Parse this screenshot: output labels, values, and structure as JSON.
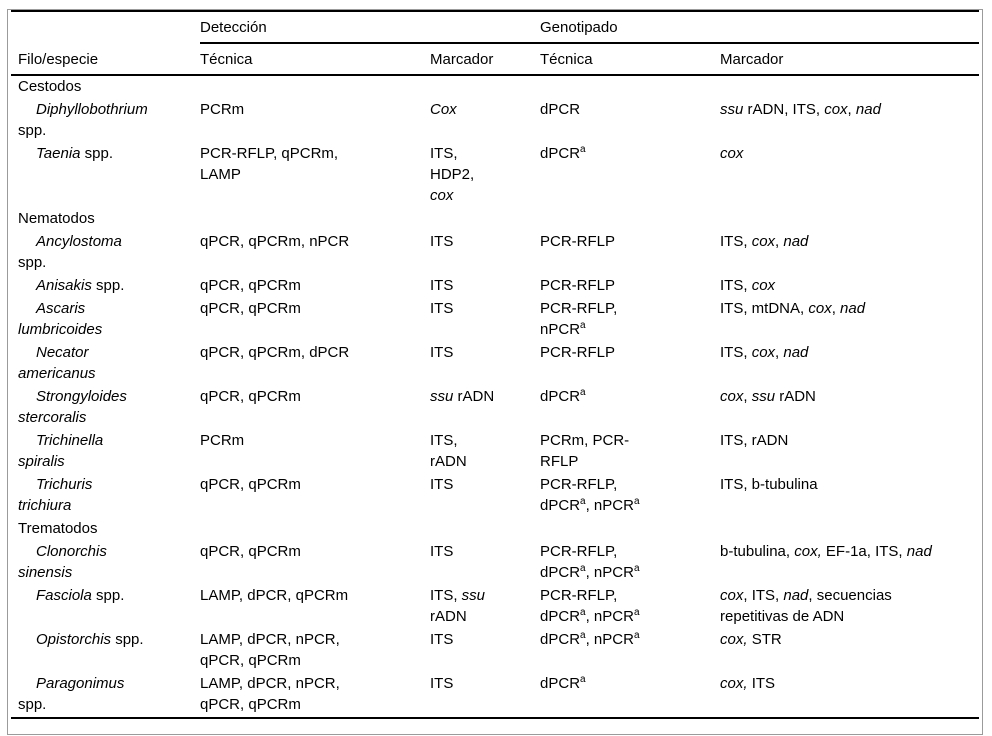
{
  "colors": {
    "background": "#ffffff",
    "text": "#000000",
    "rule": "#000000",
    "frame_border": "#9b9b9b"
  },
  "table": {
    "header": {
      "col1": "Filo/especie",
      "group1": "Detección",
      "group2": "Genotipado",
      "sub": [
        "Técnica",
        "Marcador",
        "Técnica",
        "Marcador"
      ]
    },
    "rows": [
      {
        "type": "group",
        "label": "Cestodos"
      },
      {
        "type": "species",
        "cells": {
          "species": [
            {
              "t": "Diphyllobothrium",
              "i": 1
            },
            {
              "br": 1
            },
            {
              "t": "spp."
            }
          ],
          "det_tec": [
            {
              "t": "PCRm"
            }
          ],
          "det_mar": [
            {
              "t": "Cox",
              "i": 1
            }
          ],
          "gen_tec": [
            {
              "t": "dPCR"
            }
          ],
          "gen_mar": [
            {
              "t": "ssu",
              "i": 1
            },
            {
              "t": " rADN, ITS, "
            },
            {
              "t": "cox",
              "i": 1
            },
            {
              "t": ", "
            },
            {
              "t": "nad",
              "i": 1
            }
          ]
        }
      },
      {
        "type": "species",
        "cells": {
          "species": [
            {
              "t": "Taenia",
              "i": 1
            },
            {
              "t": " spp."
            }
          ],
          "det_tec": [
            {
              "t": "PCR-RFLP, qPCRm,"
            },
            {
              "br": 1
            },
            {
              "t": "LAMP"
            }
          ],
          "det_mar": [
            {
              "t": "ITS,"
            },
            {
              "br": 1
            },
            {
              "t": "HDP2,"
            },
            {
              "br": 1
            },
            {
              "t": "cox",
              "i": 1
            }
          ],
          "gen_tec": [
            {
              "t": "dPCR"
            },
            {
              "t": "a",
              "sup": 1
            }
          ],
          "gen_mar": [
            {
              "t": "cox",
              "i": 1
            }
          ]
        }
      },
      {
        "type": "group",
        "label": "Nematodos"
      },
      {
        "type": "species",
        "cells": {
          "species": [
            {
              "t": "Ancylostoma",
              "i": 1
            },
            {
              "br": 1
            },
            {
              "t": "spp."
            }
          ],
          "det_tec": [
            {
              "t": "qPCR, qPCRm, nPCR"
            }
          ],
          "det_mar": [
            {
              "t": "ITS"
            }
          ],
          "gen_tec": [
            {
              "t": "PCR-RFLP"
            }
          ],
          "gen_mar": [
            {
              "t": "ITS, "
            },
            {
              "t": "cox",
              "i": 1
            },
            {
              "t": ", "
            },
            {
              "t": "nad",
              "i": 1
            }
          ]
        }
      },
      {
        "type": "species",
        "cells": {
          "species": [
            {
              "t": "Anisakis",
              "i": 1
            },
            {
              "t": " spp."
            }
          ],
          "det_tec": [
            {
              "t": "qPCR, qPCRm"
            }
          ],
          "det_mar": [
            {
              "t": "ITS"
            }
          ],
          "gen_tec": [
            {
              "t": "PCR-RFLP"
            }
          ],
          "gen_mar": [
            {
              "t": "ITS, "
            },
            {
              "t": "cox",
              "i": 1
            }
          ]
        }
      },
      {
        "type": "species",
        "cells": {
          "species": [
            {
              "t": "Ascaris",
              "i": 1
            },
            {
              "br": 1
            },
            {
              "t": "lumbricoides",
              "i": 1
            }
          ],
          "det_tec": [
            {
              "t": "qPCR, qPCRm"
            }
          ],
          "det_mar": [
            {
              "t": "ITS"
            }
          ],
          "gen_tec": [
            {
              "t": "PCR-RFLP,"
            },
            {
              "br": 1
            },
            {
              "t": "nPCR"
            },
            {
              "t": "a",
              "sup": 1
            }
          ],
          "gen_mar": [
            {
              "t": "ITS, mtDNA, "
            },
            {
              "t": "cox",
              "i": 1
            },
            {
              "t": ", "
            },
            {
              "t": "nad",
              "i": 1
            }
          ]
        }
      },
      {
        "type": "species",
        "cells": {
          "species": [
            {
              "t": "Necator",
              "i": 1
            },
            {
              "br": 1
            },
            {
              "t": "americanus",
              "i": 1
            }
          ],
          "det_tec": [
            {
              "t": "qPCR, qPCRm, dPCR"
            }
          ],
          "det_mar": [
            {
              "t": "ITS"
            }
          ],
          "gen_tec": [
            {
              "t": "PCR-RFLP"
            }
          ],
          "gen_mar": [
            {
              "t": "ITS, "
            },
            {
              "t": "cox",
              "i": 1
            },
            {
              "t": ", "
            },
            {
              "t": "nad",
              "i": 1
            }
          ]
        }
      },
      {
        "type": "species",
        "cells": {
          "species": [
            {
              "t": "Strongyloides",
              "i": 1
            },
            {
              "br": 1
            },
            {
              "t": "stercoralis",
              "i": 1
            }
          ],
          "det_tec": [
            {
              "t": "qPCR, qPCRm"
            }
          ],
          "det_mar": [
            {
              "t": "ssu",
              "i": 1
            },
            {
              "t": " rADN"
            }
          ],
          "gen_tec": [
            {
              "t": "dPCR"
            },
            {
              "t": "a",
              "sup": 1
            }
          ],
          "gen_mar": [
            {
              "t": "cox",
              "i": 1
            },
            {
              "t": ", "
            },
            {
              "t": "ssu",
              "i": 1
            },
            {
              "t": " rADN"
            }
          ]
        }
      },
      {
        "type": "species",
        "cells": {
          "species": [
            {
              "t": "Trichinella",
              "i": 1
            },
            {
              "br": 1
            },
            {
              "t": "spiralis",
              "i": 1
            }
          ],
          "det_tec": [
            {
              "t": "PCRm"
            }
          ],
          "det_mar": [
            {
              "t": "ITS,"
            },
            {
              "br": 1
            },
            {
              "t": "rADN"
            }
          ],
          "gen_tec": [
            {
              "t": "PCRm, PCR-"
            },
            {
              "br": 1
            },
            {
              "t": "RFLP"
            }
          ],
          "gen_mar": [
            {
              "t": "ITS, rADN"
            }
          ]
        }
      },
      {
        "type": "species",
        "cells": {
          "species": [
            {
              "t": "Trichuris",
              "i": 1
            },
            {
              "br": 1
            },
            {
              "t": "trichiura",
              "i": 1
            }
          ],
          "det_tec": [
            {
              "t": "qPCR, qPCRm"
            }
          ],
          "det_mar": [
            {
              "t": "ITS"
            }
          ],
          "gen_tec": [
            {
              "t": "PCR-RFLP,"
            },
            {
              "br": 1
            },
            {
              "t": "dPCR"
            },
            {
              "t": "a",
              "sup": 1
            },
            {
              "t": ", nPCR"
            },
            {
              "t": "a",
              "sup": 1
            }
          ],
          "gen_mar": [
            {
              "t": "ITS, b-tubulina"
            }
          ]
        }
      },
      {
        "type": "group",
        "label": "Trematodos"
      },
      {
        "type": "species",
        "cells": {
          "species": [
            {
              "t": "Clonorchis",
              "i": 1
            },
            {
              "br": 1
            },
            {
              "t": "sinensis",
              "i": 1
            }
          ],
          "det_tec": [
            {
              "t": "qPCR, qPCRm"
            }
          ],
          "det_mar": [
            {
              "t": "ITS"
            }
          ],
          "gen_tec": [
            {
              "t": "PCR-RFLP,"
            },
            {
              "br": 1
            },
            {
              "t": "dPCR"
            },
            {
              "t": "a",
              "sup": 1
            },
            {
              "t": ", nPCR"
            },
            {
              "t": "a",
              "sup": 1
            }
          ],
          "gen_mar": [
            {
              "t": "b-tubulina, "
            },
            {
              "t": "cox,",
              "i": 1
            },
            {
              "t": " EF-1a, ITS, "
            },
            {
              "t": "nad",
              "i": 1
            }
          ]
        }
      },
      {
        "type": "species",
        "cells": {
          "species": [
            {
              "t": "Fasciola",
              "i": 1
            },
            {
              "t": " spp."
            }
          ],
          "det_tec": [
            {
              "t": "LAMP, dPCR, qPCRm"
            }
          ],
          "det_mar": [
            {
              "t": "ITS, "
            },
            {
              "t": "ssu",
              "i": 1
            },
            {
              "br": 1
            },
            {
              "t": "rADN"
            }
          ],
          "gen_tec": [
            {
              "t": "PCR-RFLP,"
            },
            {
              "br": 1
            },
            {
              "t": "dPCR"
            },
            {
              "t": "a",
              "sup": 1
            },
            {
              "t": ", nPCR"
            },
            {
              "t": "a",
              "sup": 1
            }
          ],
          "gen_mar": [
            {
              "t": "cox",
              "i": 1
            },
            {
              "t": ", ITS, "
            },
            {
              "t": "nad",
              "i": 1
            },
            {
              "t": ", secuencias"
            },
            {
              "br": 1
            },
            {
              "t": "repetitivas de ADN"
            }
          ]
        }
      },
      {
        "type": "species",
        "cells": {
          "species": [
            {
              "t": "Opistorchis",
              "i": 1
            },
            {
              "t": " spp."
            }
          ],
          "det_tec": [
            {
              "t": "LAMP, dPCR, nPCR,"
            },
            {
              "br": 1
            },
            {
              "t": "qPCR, qPCRm"
            }
          ],
          "det_mar": [
            {
              "t": "ITS"
            }
          ],
          "gen_tec": [
            {
              "t": "dPCR"
            },
            {
              "t": "a",
              "sup": 1
            },
            {
              "t": ", nPCR"
            },
            {
              "t": "a",
              "sup": 1
            }
          ],
          "gen_mar": [
            {
              "t": "cox,",
              "i": 1
            },
            {
              "t": " STR"
            }
          ]
        }
      },
      {
        "type": "species",
        "cells": {
          "species": [
            {
              "t": "Paragonimus",
              "i": 1
            },
            {
              "br": 1
            },
            {
              "t": "spp."
            }
          ],
          "det_tec": [
            {
              "t": "LAMP, dPCR, nPCR,"
            },
            {
              "br": 1
            },
            {
              "t": "qPCR, qPCRm"
            }
          ],
          "det_mar": [
            {
              "t": "ITS"
            }
          ],
          "gen_tec": [
            {
              "t": "dPCR"
            },
            {
              "t": "a",
              "sup": 1
            }
          ],
          "gen_mar": [
            {
              "t": "cox,",
              "i": 1
            },
            {
              "t": " ITS"
            }
          ]
        }
      }
    ]
  }
}
